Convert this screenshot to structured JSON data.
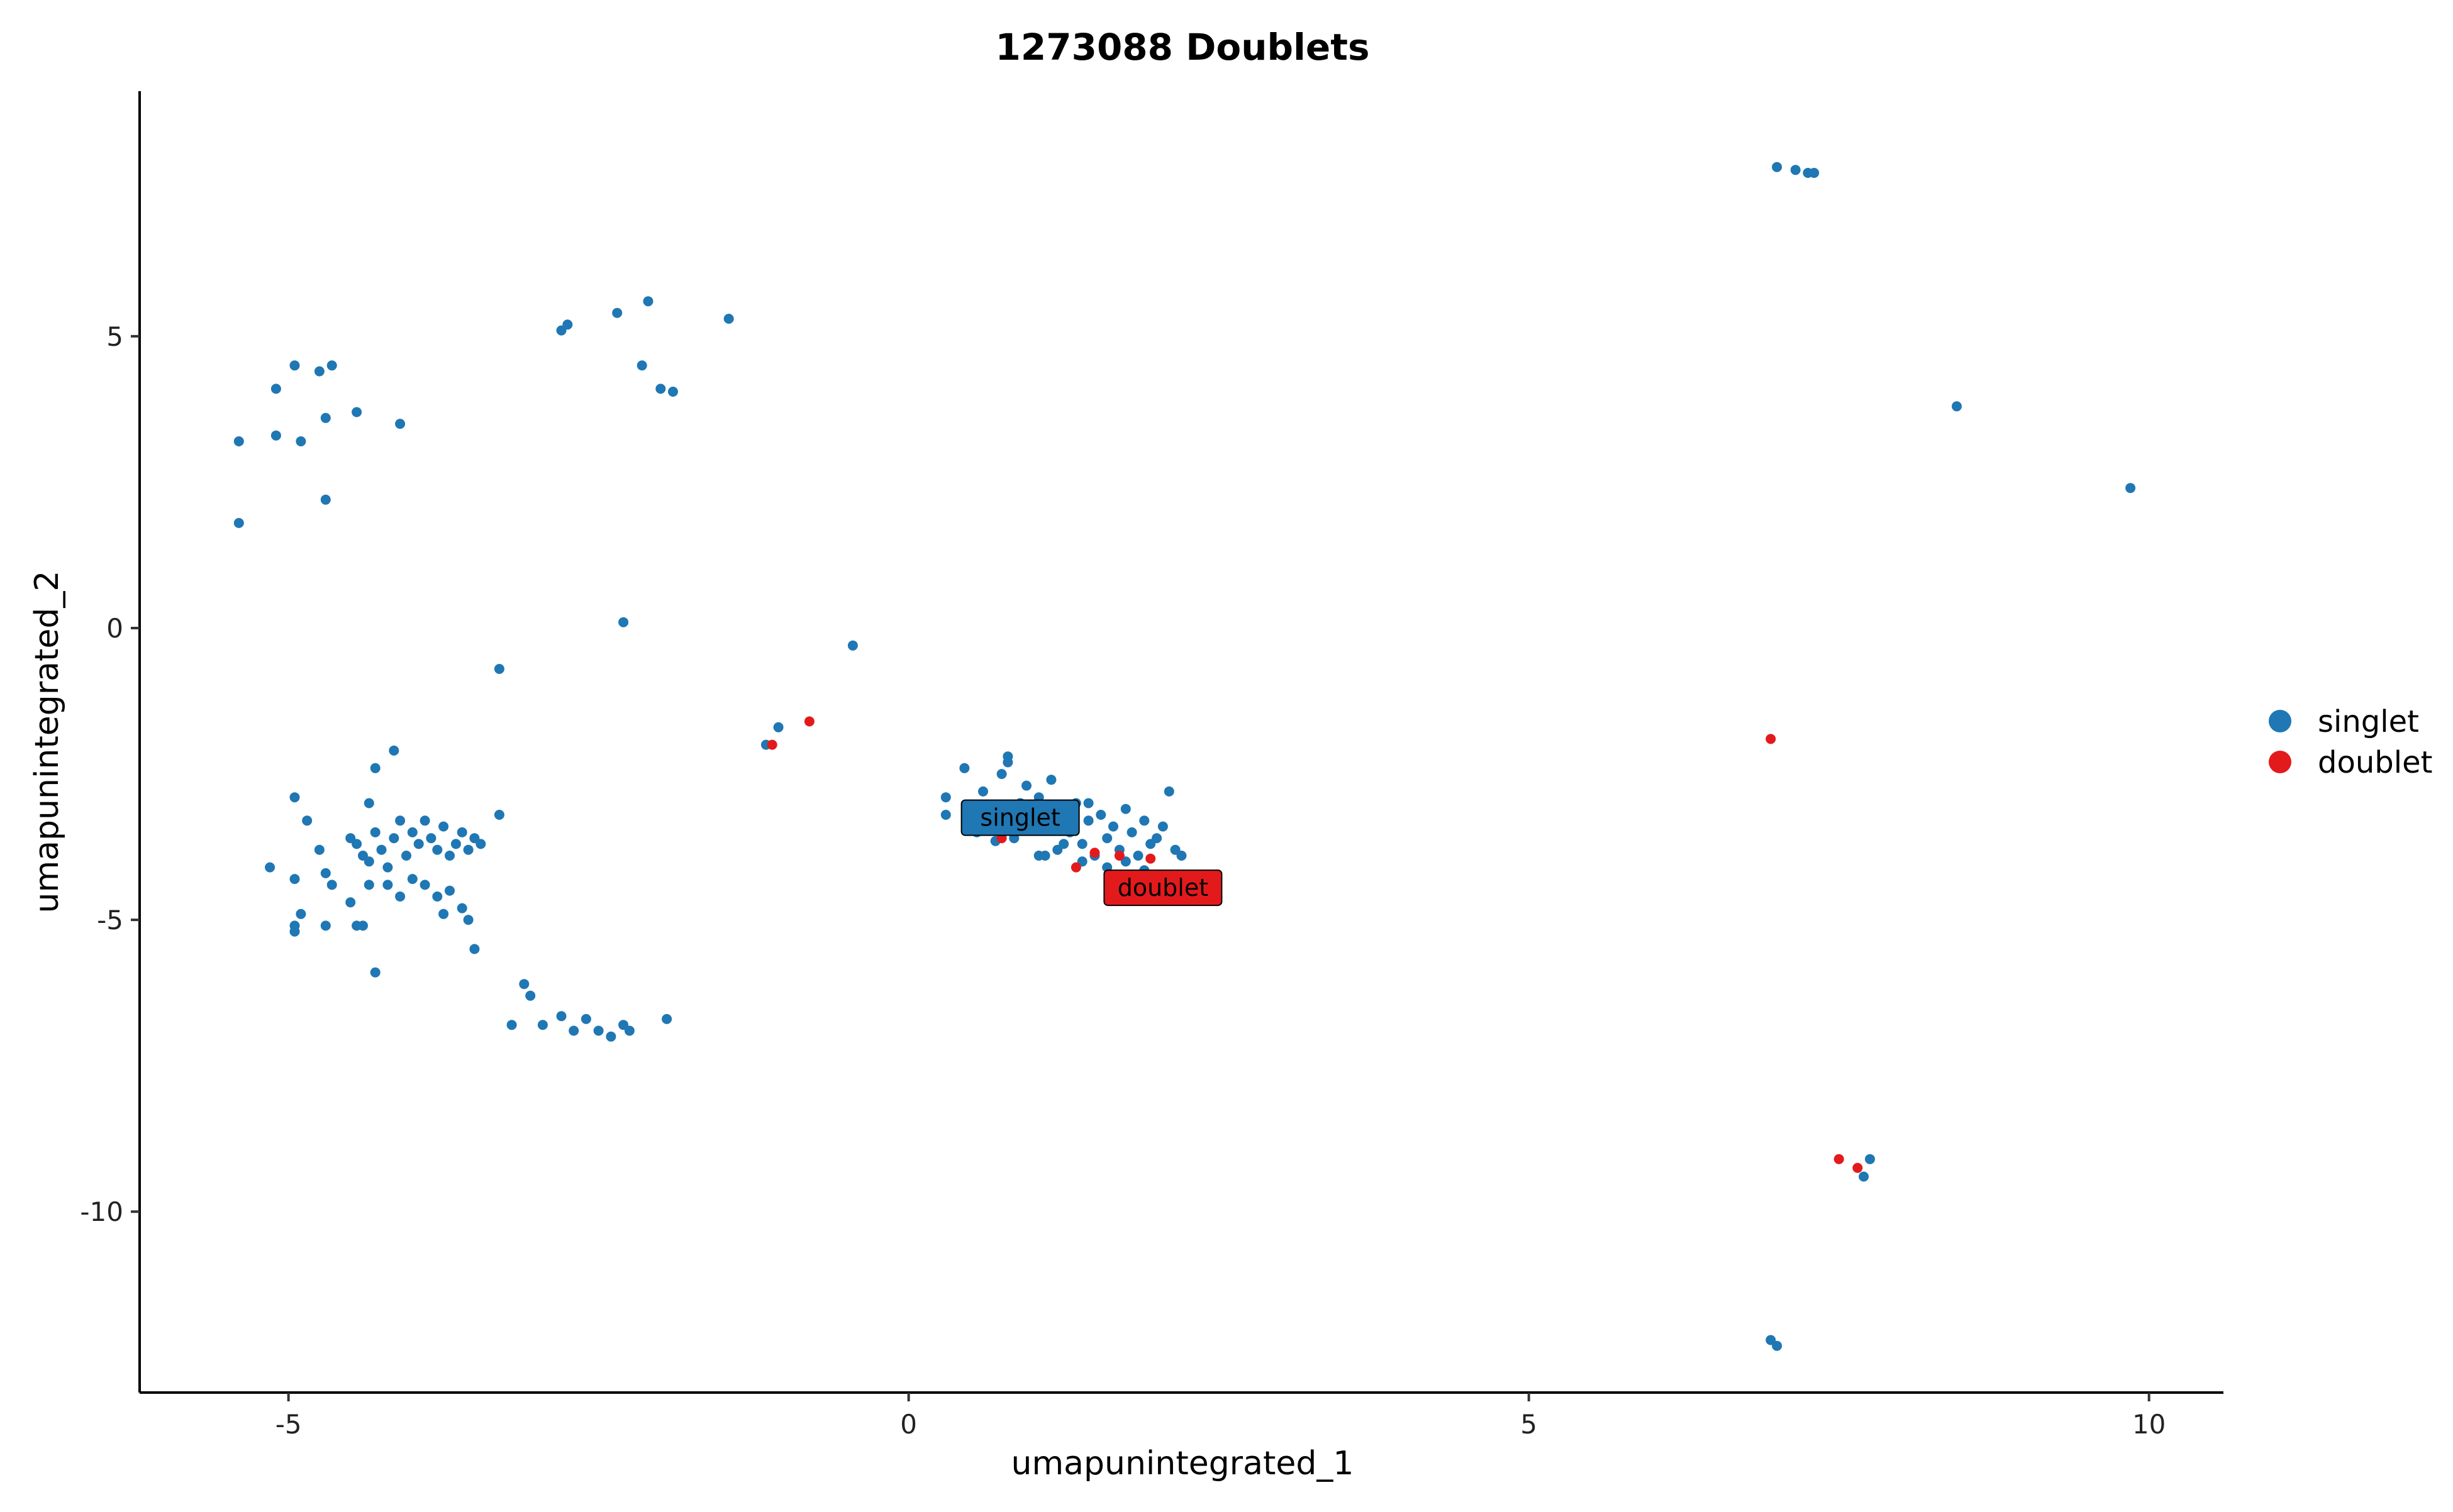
{
  "chart_data": {
    "type": "scatter",
    "title": "1273088 Doublets",
    "xlabel": "umapunintegrated_1",
    "ylabel": "umapunintegrated_2",
    "xlim": [
      -6.2,
      10.6
    ],
    "ylim": [
      -13.1,
      9.2
    ],
    "xticks": [
      -5,
      0,
      5,
      10
    ],
    "yticks": [
      -10,
      -5,
      0,
      5
    ],
    "grid": false,
    "legend_position": "right",
    "colors": {
      "singlet": "#1f77b4",
      "doublet": "#e31a1c"
    },
    "series": [
      {
        "name": "singlet",
        "points": [
          [
            -5.4,
            3.2
          ],
          [
            -5.4,
            1.8
          ],
          [
            -5.1,
            4.1
          ],
          [
            -5.1,
            3.3
          ],
          [
            -4.95,
            4.5
          ],
          [
            -4.9,
            3.2
          ],
          [
            -4.75,
            4.4
          ],
          [
            -4.65,
            4.5
          ],
          [
            -4.7,
            3.6
          ],
          [
            -4.45,
            3.7
          ],
          [
            -4.1,
            3.5
          ],
          [
            -4.7,
            2.2
          ],
          [
            -2.8,
            5.1
          ],
          [
            -2.75,
            5.2
          ],
          [
            -2.35,
            5.4
          ],
          [
            -2.1,
            5.6
          ],
          [
            -1.45,
            5.3
          ],
          [
            -2.15,
            4.5
          ],
          [
            -2.0,
            4.1
          ],
          [
            -1.9,
            4.05
          ],
          [
            -2.3,
            0.1
          ],
          [
            -0.45,
            -0.3
          ],
          [
            -3.3,
            -0.7
          ],
          [
            -1.05,
            -1.7
          ],
          [
            -1.15,
            -2.0
          ],
          [
            -4.3,
            -2.4
          ],
          [
            -4.15,
            -2.1
          ],
          [
            -4.95,
            -2.9
          ],
          [
            -4.85,
            -3.3
          ],
          [
            -4.35,
            -3.0
          ],
          [
            -5.15,
            -4.1
          ],
          [
            -4.95,
            -4.3
          ],
          [
            -4.9,
            -4.9
          ],
          [
            -4.95,
            -5.1
          ],
          [
            -4.95,
            -5.2
          ],
          [
            -4.7,
            -5.1
          ],
          [
            -4.45,
            -5.1
          ],
          [
            -4.3,
            -5.9
          ],
          [
            -4.75,
            -3.8
          ],
          [
            -4.7,
            -4.2
          ],
          [
            -4.65,
            -4.4
          ],
          [
            -4.5,
            -3.6
          ],
          [
            -4.45,
            -3.7
          ],
          [
            -4.4,
            -3.9
          ],
          [
            -4.35,
            -4.0
          ],
          [
            -4.3,
            -3.5
          ],
          [
            -4.25,
            -3.8
          ],
          [
            -4.2,
            -4.1
          ],
          [
            -4.15,
            -3.6
          ],
          [
            -4.1,
            -3.3
          ],
          [
            -4.05,
            -3.9
          ],
          [
            -4.0,
            -3.5
          ],
          [
            -3.95,
            -3.7
          ],
          [
            -3.9,
            -3.3
          ],
          [
            -3.85,
            -3.6
          ],
          [
            -3.8,
            -3.8
          ],
          [
            -3.75,
            -3.4
          ],
          [
            -3.7,
            -3.9
          ],
          [
            -3.65,
            -3.7
          ],
          [
            -3.6,
            -3.5
          ],
          [
            -3.55,
            -3.8
          ],
          [
            -3.5,
            -3.6
          ],
          [
            -3.45,
            -3.7
          ],
          [
            -4.2,
            -4.4
          ],
          [
            -4.1,
            -4.6
          ],
          [
            -4.0,
            -4.3
          ],
          [
            -3.9,
            -4.4
          ],
          [
            -3.8,
            -4.6
          ],
          [
            -3.7,
            -4.5
          ],
          [
            -3.6,
            -4.8
          ],
          [
            -3.55,
            -5.0
          ],
          [
            -3.5,
            -5.5
          ],
          [
            -3.3,
            -3.2
          ],
          [
            -4.5,
            -4.7
          ],
          [
            -4.35,
            -4.4
          ],
          [
            -3.75,
            -4.9
          ],
          [
            -4.4,
            -5.1
          ],
          [
            -3.1,
            -6.1
          ],
          [
            -3.2,
            -6.8
          ],
          [
            -2.95,
            -6.8
          ],
          [
            -2.8,
            -6.65
          ],
          [
            -2.7,
            -6.9
          ],
          [
            -2.6,
            -6.7
          ],
          [
            -2.5,
            -6.9
          ],
          [
            -2.4,
            -7.0
          ],
          [
            -2.3,
            -6.8
          ],
          [
            -2.25,
            -6.9
          ],
          [
            -1.95,
            -6.7
          ],
          [
            -3.05,
            -6.3
          ],
          [
            0.3,
            -2.9
          ],
          [
            0.3,
            -3.2
          ],
          [
            0.45,
            -2.4
          ],
          [
            0.5,
            -3.2
          ],
          [
            0.55,
            -3.5
          ],
          [
            0.6,
            -2.8
          ],
          [
            0.65,
            -3.1
          ],
          [
            0.7,
            -3.3
          ],
          [
            0.75,
            -2.5
          ],
          [
            0.8,
            -2.2
          ],
          [
            0.8,
            -2.3
          ],
          [
            0.85,
            -3.6
          ],
          [
            0.9,
            -3.0
          ],
          [
            0.95,
            -2.7
          ],
          [
            1.0,
            -3.4
          ],
          [
            1.05,
            -3.9
          ],
          [
            1.1,
            -3.2
          ],
          [
            1.15,
            -2.6
          ],
          [
            1.2,
            -3.8
          ],
          [
            1.25,
            -3.1
          ],
          [
            1.3,
            -3.5
          ],
          [
            1.35,
            -3.0
          ],
          [
            1.4,
            -3.7
          ],
          [
            1.45,
            -3.3
          ],
          [
            1.5,
            -3.9
          ],
          [
            1.55,
            -3.2
          ],
          [
            1.6,
            -3.6
          ],
          [
            1.65,
            -3.4
          ],
          [
            1.7,
            -3.8
          ],
          [
            1.75,
            -3.1
          ],
          [
            1.8,
            -3.5
          ],
          [
            1.85,
            -3.9
          ],
          [
            1.9,
            -3.3
          ],
          [
            1.95,
            -3.7
          ],
          [
            2.0,
            -3.6
          ],
          [
            2.05,
            -3.4
          ],
          [
            2.1,
            -2.8
          ],
          [
            2.15,
            -3.8
          ],
          [
            2.2,
            -3.9
          ],
          [
            0.55,
            -3.35
          ],
          [
            0.7,
            -3.65
          ],
          [
            1.1,
            -3.9
          ],
          [
            1.25,
            -3.7
          ],
          [
            1.4,
            -4.0
          ],
          [
            1.6,
            -4.1
          ],
          [
            1.75,
            -4.0
          ],
          [
            1.9,
            -4.15
          ],
          [
            1.05,
            -2.9
          ],
          [
            1.45,
            -3.0
          ],
          [
            7.0,
            7.9
          ],
          [
            7.15,
            7.85
          ],
          [
            7.25,
            7.8
          ],
          [
            7.3,
            7.8
          ],
          [
            8.45,
            3.8
          ],
          [
            9.85,
            2.4
          ],
          [
            7.75,
            -9.1
          ],
          [
            7.7,
            -9.4
          ],
          [
            6.95,
            -12.2
          ],
          [
            7.0,
            -12.3
          ]
        ]
      },
      {
        "name": "doublet",
        "points": [
          [
            -1.1,
            -2.0
          ],
          [
            -0.8,
            -1.6
          ],
          [
            6.95,
            -1.9
          ],
          [
            7.5,
            -9.1
          ],
          [
            7.65,
            -9.25
          ],
          [
            1.35,
            -4.1
          ],
          [
            1.7,
            -3.9
          ],
          [
            1.95,
            -3.95
          ],
          [
            0.75,
            -3.6
          ],
          [
            1.5,
            -3.85
          ]
        ]
      }
    ],
    "cluster_labels": [
      {
        "text": "singlet",
        "series": "singlet",
        "x": 0.9,
        "y": -3.25
      },
      {
        "text": "doublet",
        "series": "doublet",
        "x": 2.05,
        "y": -4.45
      }
    ]
  }
}
